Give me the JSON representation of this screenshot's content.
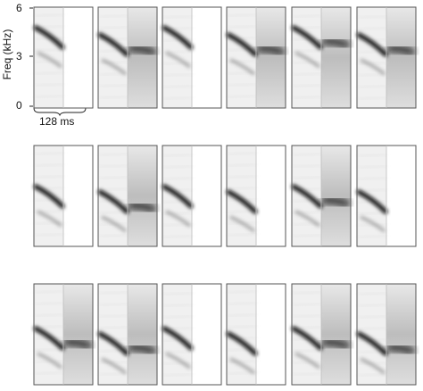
{
  "yaxis": {
    "label": "Freq (kHz)",
    "ticks": [
      "6",
      "3",
      "0"
    ]
  },
  "scalebar": {
    "label": "128 ms"
  },
  "panels": [
    {
      "id": "r1c1",
      "row": 1,
      "col": 1
    },
    {
      "id": "r1c2",
      "row": 1,
      "col": 2
    },
    {
      "id": "r1c3",
      "row": 1,
      "col": 3
    },
    {
      "id": "r1c4",
      "row": 1,
      "col": 4
    },
    {
      "id": "r1c5",
      "row": 1,
      "col": 5
    },
    {
      "id": "r1c6",
      "row": 1,
      "col": 6
    },
    {
      "id": "r2c1",
      "row": 2,
      "col": 1
    },
    {
      "id": "r2c2",
      "row": 2,
      "col": 2
    },
    {
      "id": "r2c3",
      "row": 2,
      "col": 3
    },
    {
      "id": "r2c4",
      "row": 2,
      "col": 4
    },
    {
      "id": "r2c5",
      "row": 2,
      "col": 5
    },
    {
      "id": "r2c6",
      "row": 2,
      "col": 6
    },
    {
      "id": "r3c1",
      "row": 3,
      "col": 1
    },
    {
      "id": "r3c2",
      "row": 3,
      "col": 2
    },
    {
      "id": "r3c3",
      "row": 3,
      "col": 3
    },
    {
      "id": "r3c4",
      "row": 3,
      "col": 4
    },
    {
      "id": "r3c5",
      "row": 3,
      "col": 5
    },
    {
      "id": "r3c6",
      "row": 3,
      "col": 6
    }
  ]
}
